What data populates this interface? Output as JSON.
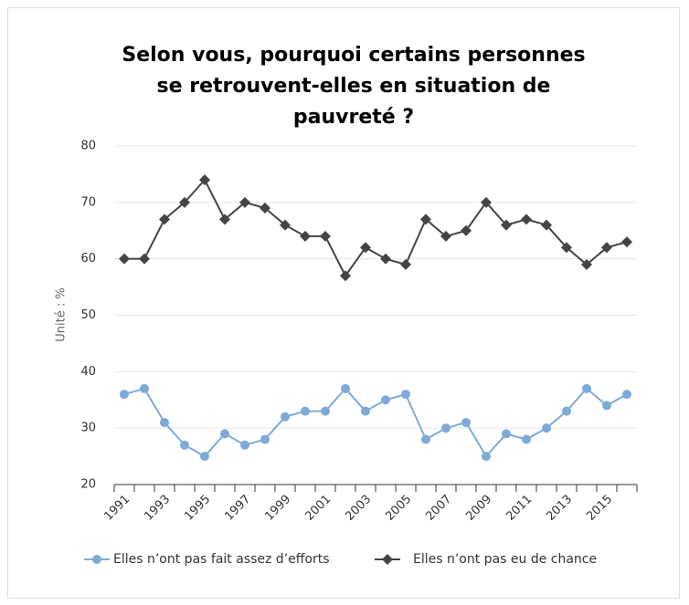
{
  "chart_data": {
    "type": "line",
    "title": "Selon vous, pourquoi certains personnes se retrouvent-elles en situation de pauvreté ?",
    "y_label": "Unité : %",
    "categories": [
      "1991",
      null,
      "1993",
      null,
      "1995",
      null,
      "1997",
      null,
      "1999",
      null,
      "2001",
      null,
      "2003",
      null,
      "2005",
      null,
      "2007",
      null,
      "2009",
      null,
      "2011",
      null,
      "2013",
      null,
      "2015",
      null
    ],
    "series": [
      {
        "name": "Elles n’ont pas fait assez d’efforts",
        "color": "#7eaad8",
        "marker": "circle",
        "values": [
          36,
          37,
          31,
          27,
          25,
          29,
          27,
          28,
          32,
          33,
          33,
          37,
          33,
          35,
          36,
          28,
          30,
          31,
          25,
          29,
          28,
          30,
          33,
          37,
          34,
          36
        ]
      },
      {
        "name": "Elles n’ont pas eu de chance",
        "color": "#434348",
        "marker": "diamond",
        "values": [
          60,
          60,
          67,
          70,
          74,
          67,
          70,
          69,
          66,
          64,
          64,
          57,
          62,
          60,
          59,
          67,
          64,
          65,
          70,
          66,
          67,
          66,
          62,
          59,
          62,
          63
        ]
      }
    ],
    "ylim": [
      20,
      80
    ],
    "yticks": [
      20,
      30,
      40,
      50,
      60,
      70,
      80
    ],
    "grid": true,
    "legend": "bottom"
  }
}
